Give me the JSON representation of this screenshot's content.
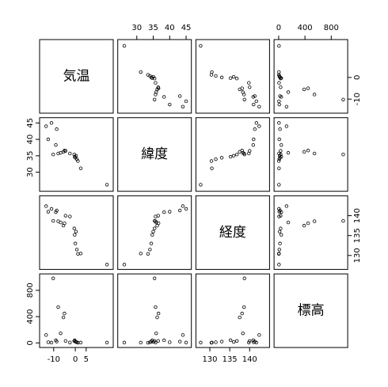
{
  "chart_data": {
    "type": "pairs",
    "variables": [
      {
        "name": "気温",
        "lim": [
          -16.5,
          17.5
        ],
        "xticks": [
          -10,
          0,
          5
        ],
        "yticks": [
          -10,
          0
        ],
        "values": [
          14.6,
          2.5,
          1.2,
          0.7,
          0.0,
          -0.3,
          0.3,
          -0.5,
          -2.5,
          -4.5,
          -6.8,
          -5.5,
          -5.0,
          -7.9,
          -10.2,
          -9.0,
          -12.5,
          -8.6,
          -13.5,
          -11.0
        ]
      },
      {
        "name": "緯度",
        "lim": [
          24.2,
          46.6
        ],
        "xticks": [
          30,
          35,
          40,
          45
        ],
        "yticks": [
          30,
          35,
          40,
          45
        ],
        "values": [
          26.2,
          31.2,
          33.4,
          34.0,
          34.4,
          34.7,
          35.0,
          35.4,
          35.7,
          36.5,
          35.9,
          36.2,
          36.6,
          35.7,
          35.4,
          38.3,
          40.0,
          43.1,
          44.0,
          45.0
        ]
      },
      {
        "name": "経度",
        "lim": [
          126.5,
          145.0
        ],
        "xticks": [
          130,
          135,
          140
        ],
        "yticks": [
          130,
          135,
          140
        ],
        "values": [
          127.7,
          130.5,
          130.4,
          131.5,
          133.0,
          135.2,
          136.0,
          136.8,
          139.8,
          140.0,
          138.3,
          137.5,
          138.1,
          138.6,
          138.7,
          140.9,
          141.0,
          141.3,
          142.4,
          141.7
        ]
      },
      {
        "name": "標高",
        "lim": [
          -70,
          1050
        ],
        "xticks": [
          0,
          400,
          800
        ],
        "yticks": [
          0,
          400,
          800
        ],
        "values": [
          5,
          5,
          3,
          10,
          20,
          40,
          15,
          30,
          6,
          30,
          146,
          388,
          448,
          545,
          982,
          40,
          10,
          20,
          120,
          5
        ]
      }
    ]
  }
}
